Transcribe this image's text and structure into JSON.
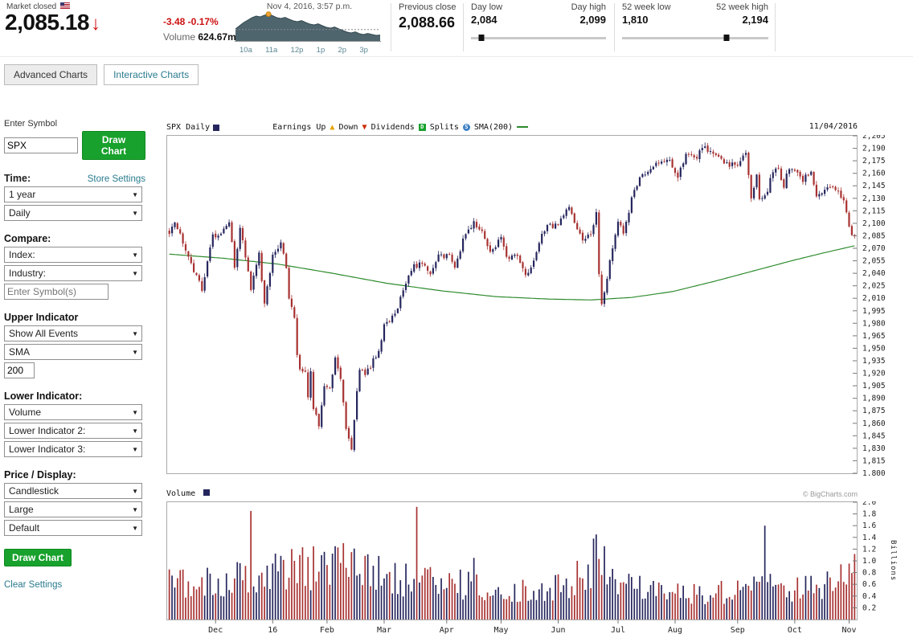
{
  "header": {
    "market_status": "Market closed",
    "price": "2,085.18",
    "change": "-3.48 -0.17%",
    "volume_label": "Volume",
    "volume_value": "624.67m",
    "timestamp": "Nov 4, 2016, 3:57 p.m.",
    "time_labels": [
      "10a",
      "11a",
      "12p",
      "1p",
      "2p",
      "3p"
    ],
    "previous_close_label": "Previous close",
    "previous_close": "2,088.66",
    "day_low_label": "Day low",
    "day_low": "2,084",
    "day_high_label": "Day high",
    "day_high": "2,099",
    "week52_low_label": "52 week low",
    "week52_low": "1,810",
    "week52_high_label": "52 week high",
    "week52_high": "2,194",
    "day_slider_pos": 0.079,
    "week52_slider_pos": 0.716,
    "sparkline": {
      "values": [
        2089,
        2091,
        2093,
        2094.5,
        2096,
        2097,
        2096.5,
        2097.5,
        2098.2,
        2097.2,
        2096,
        2095.5,
        2096.2,
        2095,
        2094,
        2093.5,
        2094.2,
        2093,
        2092,
        2091.5,
        2092.2,
        2091,
        2090,
        2089.5,
        2090.2,
        2089,
        2088,
        2087,
        2086.5,
        2087.2,
        2086,
        2085.5,
        2086.2,
        2085.6,
        2085,
        2085.2
      ],
      "marker_index": 8,
      "prev_close": 2088.66,
      "ymin": 2083,
      "ymax": 2099
    }
  },
  "tabs": [
    {
      "label": "Advanced Charts",
      "active": true
    },
    {
      "label": "Interactive Charts",
      "active": false
    }
  ],
  "sidebar": {
    "symbol_label": "Enter Symbol",
    "symbol_value": "SPX",
    "draw_chart": "Draw Chart",
    "time_label": "Time:",
    "store_settings": "Store Settings",
    "time_range": "1 year",
    "frequency": "Daily",
    "compare_label": "Compare:",
    "index_select": "Index:",
    "industry_select": "Industry:",
    "compare_placeholder": "Enter Symbol(s)",
    "upper_label": "Upper Indicator",
    "events_select": "Show All Events",
    "upper_indicator": "SMA",
    "upper_param": "200",
    "lower_label": "Lower Indicator:",
    "lower1": "Volume",
    "lower2": "Lower Indicator 2:",
    "lower3": "Lower Indicator 3:",
    "price_display_label": "Price / Display:",
    "chart_type": "Candlestick",
    "chart_size": "Large",
    "chart_style": "Default",
    "clear_settings": "Clear Settings"
  },
  "chart": {
    "legend_symbol": "SPX Daily",
    "legend_earnings": "Earnings Up",
    "legend_down": "Down",
    "legend_dividends": "Dividends",
    "dividends_letter": "D",
    "legend_splits": "Splits",
    "splits_letter": "S",
    "legend_sma": "SMA(200)",
    "date": "11/04/2016",
    "volume_title": "Volume",
    "copyright": "© BigCharts.com",
    "billions_label": "Billions"
  },
  "colors": {
    "accent_green": "#18a12d",
    "link_teal": "#2a7b8e",
    "negative_red": "#cc1111",
    "candle_up": "#26265e",
    "candle_down": "#a83232",
    "sma_green": "#2e8b2e",
    "spark_fill": "#4e656e",
    "spark_line": "#33484f",
    "marker_orange": "#f0a030"
  },
  "chart_data": {
    "type": "candlestick",
    "symbol": "SPX",
    "frequency": "Daily",
    "title": "SPX Daily with SMA(200) and Volume",
    "n_days": 253,
    "ylim": [
      1800,
      2205
    ],
    "y_tick_step": 15,
    "close_anchors": [
      [
        0,
        2090
      ],
      [
        2,
        2098
      ],
      [
        5,
        2078
      ],
      [
        8,
        2052
      ],
      [
        12,
        2022
      ],
      [
        16,
        2086
      ],
      [
        19,
        2088
      ],
      [
        22,
        2100
      ],
      [
        24,
        2050
      ],
      [
        26,
        2092
      ],
      [
        28,
        2062
      ],
      [
        30,
        2020
      ],
      [
        33,
        2062
      ],
      [
        35,
        2005
      ],
      [
        38,
        2062
      ],
      [
        41,
        2078
      ],
      [
        43,
        2044
      ],
      [
        44,
        2012
      ],
      [
        46,
        1990
      ],
      [
        47,
        1943
      ],
      [
        48,
        1922
      ],
      [
        50,
        1923
      ],
      [
        51,
        1890
      ],
      [
        52,
        1921
      ],
      [
        53,
        1880
      ],
      [
        55,
        1859
      ],
      [
        57,
        1906
      ],
      [
        59,
        1903
      ],
      [
        61,
        1940
      ],
      [
        63,
        1913
      ],
      [
        65,
        1853
      ],
      [
        67,
        1827
      ],
      [
        68,
        1865
      ],
      [
        70,
        1926
      ],
      [
        72,
        1918
      ],
      [
        74,
        1929
      ],
      [
        77,
        1948
      ],
      [
        79,
        1978
      ],
      [
        83,
        1990
      ],
      [
        86,
        2022
      ],
      [
        90,
        2050
      ],
      [
        93,
        2050
      ],
      [
        96,
        2037
      ],
      [
        99,
        2060
      ],
      [
        101,
        2060
      ],
      [
        103,
        2066
      ],
      [
        105,
        2045
      ],
      [
        108,
        2082
      ],
      [
        112,
        2100
      ],
      [
        115,
        2091
      ],
      [
        118,
        2065
      ],
      [
        122,
        2081
      ],
      [
        124,
        2057
      ],
      [
        128,
        2064
      ],
      [
        131,
        2040
      ],
      [
        134,
        2052
      ],
      [
        137,
        2090
      ],
      [
        140,
        2097
      ],
      [
        143,
        2099
      ],
      [
        147,
        2119
      ],
      [
        150,
        2096
      ],
      [
        152,
        2077
      ],
      [
        155,
        2088
      ],
      [
        157,
        2113
      ],
      [
        158,
        2037
      ],
      [
        159,
        2001
      ],
      [
        161,
        2036
      ],
      [
        163,
        2070
      ],
      [
        165,
        2103
      ],
      [
        167,
        2089
      ],
      [
        170,
        2129
      ],
      [
        173,
        2152
      ],
      [
        176,
        2163
      ],
      [
        180,
        2173
      ],
      [
        184,
        2174
      ],
      [
        187,
        2157
      ],
      [
        190,
        2183
      ],
      [
        194,
        2181
      ],
      [
        196,
        2190
      ],
      [
        200,
        2187
      ],
      [
        203,
        2175
      ],
      [
        206,
        2171
      ],
      [
        209,
        2171
      ],
      [
        212,
        2186
      ],
      [
        214,
        2128
      ],
      [
        216,
        2159
      ],
      [
        217,
        2127
      ],
      [
        220,
        2139
      ],
      [
        222,
        2163
      ],
      [
        224,
        2165
      ],
      [
        226,
        2146
      ],
      [
        228,
        2168
      ],
      [
        230,
        2161
      ],
      [
        233,
        2153
      ],
      [
        236,
        2164
      ],
      [
        238,
        2133
      ],
      [
        241,
        2141
      ],
      [
        244,
        2143
      ],
      [
        247,
        2133
      ],
      [
        248,
        2126
      ],
      [
        249,
        2111
      ],
      [
        250,
        2097
      ],
      [
        251,
        2088
      ],
      [
        252,
        2085
      ]
    ],
    "sma200_anchors": [
      [
        0,
        2063
      ],
      [
        20,
        2058
      ],
      [
        40,
        2051
      ],
      [
        60,
        2040
      ],
      [
        80,
        2028
      ],
      [
        100,
        2019
      ],
      [
        120,
        2012
      ],
      [
        140,
        2009
      ],
      [
        155,
        2008
      ],
      [
        170,
        2011
      ],
      [
        185,
        2018
      ],
      [
        200,
        2030
      ],
      [
        215,
        2043
      ],
      [
        230,
        2056
      ],
      [
        240,
        2064
      ],
      [
        252,
        2073
      ]
    ],
    "volume_ylim": [
      0,
      2.0
    ],
    "volume_tick_step": 0.2,
    "volume_base_anchors": [
      [
        0,
        0.62
      ],
      [
        20,
        0.66
      ],
      [
        35,
        0.72
      ],
      [
        44,
        0.85
      ],
      [
        55,
        0.9
      ],
      [
        67,
        0.92
      ],
      [
        80,
        0.75
      ],
      [
        100,
        0.62
      ],
      [
        120,
        0.55
      ],
      [
        140,
        0.5
      ],
      [
        157,
        0.75
      ],
      [
        165,
        0.6
      ],
      [
        186,
        0.42
      ],
      [
        200,
        0.45
      ],
      [
        215,
        0.55
      ],
      [
        230,
        0.52
      ],
      [
        245,
        0.6
      ],
      [
        252,
        0.78
      ]
    ],
    "volume_spikes": {
      "30": 1.85,
      "48": 1.1,
      "67": 1.15,
      "91": 1.92,
      "112": 1.05,
      "150": 1.0,
      "156": 1.38,
      "157": 1.45,
      "160": 1.25,
      "219": 1.6
    },
    "month_ticks": [
      {
        "i": 17,
        "label": "Dec"
      },
      {
        "i": 38,
        "label": "16"
      },
      {
        "i": 58,
        "label": "Feb"
      },
      {
        "i": 79,
        "label": "Mar"
      },
      {
        "i": 102,
        "label": "Apr"
      },
      {
        "i": 122,
        "label": "May"
      },
      {
        "i": 143,
        "label": "Jun"
      },
      {
        "i": 165,
        "label": "Jul"
      },
      {
        "i": 186,
        "label": "Aug"
      },
      {
        "i": 209,
        "label": "Sep"
      },
      {
        "i": 230,
        "label": "Oct"
      },
      {
        "i": 250,
        "label": "Nov"
      }
    ]
  }
}
